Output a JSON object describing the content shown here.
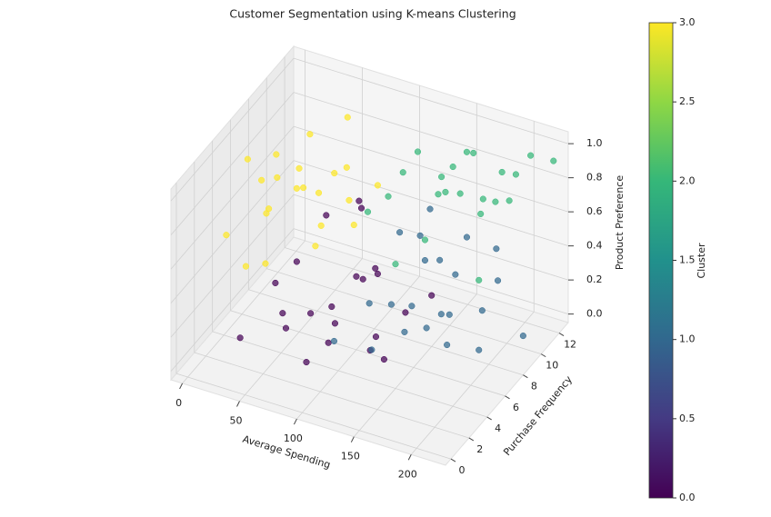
{
  "chart_data": {
    "type": "scatter3d",
    "title": "Customer Segmentation using K-means Clustering",
    "xlabel": "Average Spending",
    "ylabel": "Purchase Frequency",
    "zlabel": "Product Preference",
    "x": [
      10,
      25,
      40,
      55,
      70,
      85,
      15,
      30,
      45,
      60,
      75,
      90,
      20,
      35,
      50,
      65,
      80,
      5,
      95,
      45,
      60,
      30,
      30,
      45,
      60,
      75,
      90,
      105,
      120,
      135,
      50,
      70,
      85,
      100,
      115,
      140,
      40,
      65,
      80,
      95,
      110,
      125,
      55,
      150,
      120,
      135,
      150,
      165,
      180,
      195,
      210,
      140,
      155,
      170,
      185,
      200,
      125,
      145,
      160,
      175,
      190,
      215,
      130,
      205,
      230,
      165,
      110,
      125,
      140,
      155,
      170,
      185,
      200,
      215,
      130,
      145,
      160,
      175,
      190,
      205,
      120,
      150,
      180,
      210,
      135,
      165,
      195,
      225
    ],
    "y": [
      3,
      5,
      7,
      2,
      9,
      4,
      8,
      6,
      3,
      10,
      5,
      7,
      11,
      2,
      6,
      8,
      4,
      6,
      9,
      12,
      1,
      9,
      2,
      4,
      6,
      1,
      8,
      3,
      5,
      7,
      9,
      2,
      10,
      6,
      1,
      4,
      7,
      11,
      3,
      9,
      2,
      5,
      12,
      8,
      1,
      3,
      5,
      7,
      2,
      4,
      6,
      8,
      10,
      1,
      3,
      9,
      11,
      2,
      6,
      12,
      4,
      5,
      7,
      3,
      8,
      10,
      6,
      8,
      10,
      12,
      7,
      9,
      11,
      5,
      9,
      11,
      6,
      8,
      10,
      12,
      7,
      4,
      12,
      9,
      11,
      10,
      8,
      12
    ],
    "z": [
      0.62,
      0.85,
      0.71,
      0.93,
      0.58,
      0.77,
      0.66,
      0.95,
      0.82,
      0.69,
      0.88,
      0.6,
      0.74,
      0.55,
      0.91,
      0.79,
      0.64,
      0.87,
      0.72,
      0.83,
      0.68,
      0.57,
      0.12,
      0.35,
      0.08,
      0.42,
      0.22,
      0.3,
      0.05,
      0.18,
      0.45,
      0.26,
      0.15,
      0.38,
      0.33,
      0.1,
      0.28,
      0.4,
      0.02,
      0.2,
      0.47,
      0.14,
      0.36,
      0.25,
      0.35,
      0.48,
      0.22,
      0.55,
      0.62,
      0.3,
      0.41,
      0.58,
      0.26,
      0.67,
      0.44,
      0.38,
      0.52,
      0.29,
      0.6,
      0.33,
      0.47,
      0.25,
      0.64,
      0.56,
      0.18,
      0.5,
      0.78,
      0.92,
      0.7,
      0.85,
      0.96,
      0.74,
      0.88,
      0.66,
      0.99,
      0.81,
      0.72,
      0.9,
      0.76,
      0.94,
      0.83,
      0.68,
      0.79,
      0.87,
      0.73,
      1.0,
      0.91,
      0.95
    ],
    "c": [
      3,
      3,
      3,
      3,
      3,
      3,
      3,
      3,
      3,
      3,
      3,
      3,
      3,
      3,
      3,
      3,
      3,
      3,
      3,
      3,
      3,
      3,
      0,
      0,
      0,
      0,
      0,
      0,
      0,
      0,
      0,
      0,
      0,
      0,
      0,
      0,
      0,
      0,
      0,
      0,
      0,
      0,
      0,
      0,
      1,
      1,
      1,
      1,
      1,
      1,
      1,
      1,
      1,
      1,
      1,
      1,
      1,
      1,
      1,
      1,
      1,
      1,
      1,
      1,
      1,
      1,
      2,
      2,
      2,
      2,
      2,
      2,
      2,
      2,
      2,
      2,
      2,
      2,
      2,
      2,
      2,
      2,
      2,
      2,
      2,
      2,
      2,
      2
    ],
    "xlim": [
      -10,
      230
    ],
    "ylim": [
      -0.6,
      13
    ],
    "zlim": [
      -0.05,
      1.07
    ],
    "xticks": [
      0,
      50,
      100,
      150,
      200
    ],
    "yticks": [
      0,
      2,
      4,
      6,
      8,
      10,
      12
    ],
    "zticks": [
      {
        "value": 0,
        "label": "0.0"
      },
      0.2,
      0.4,
      0.6,
      0.8,
      {
        "value": 1,
        "label": "1.0"
      }
    ],
    "colorbar": {
      "label": "Cluster",
      "clim": [
        0,
        3
      ],
      "ticks": [
        {
          "value": 0,
          "label": "0.0"
        },
        0.5,
        {
          "value": 1,
          "label": "1.0"
        },
        1.5,
        {
          "value": 2,
          "label": "2.0"
        },
        2.5,
        {
          "value": 3,
          "label": "3.0"
        }
      ],
      "colors": [
        "#440154",
        "#443a83",
        "#31688e",
        "#21918c",
        "#35b779",
        "#8fd744",
        "#fde725"
      ]
    },
    "grid": true
  }
}
